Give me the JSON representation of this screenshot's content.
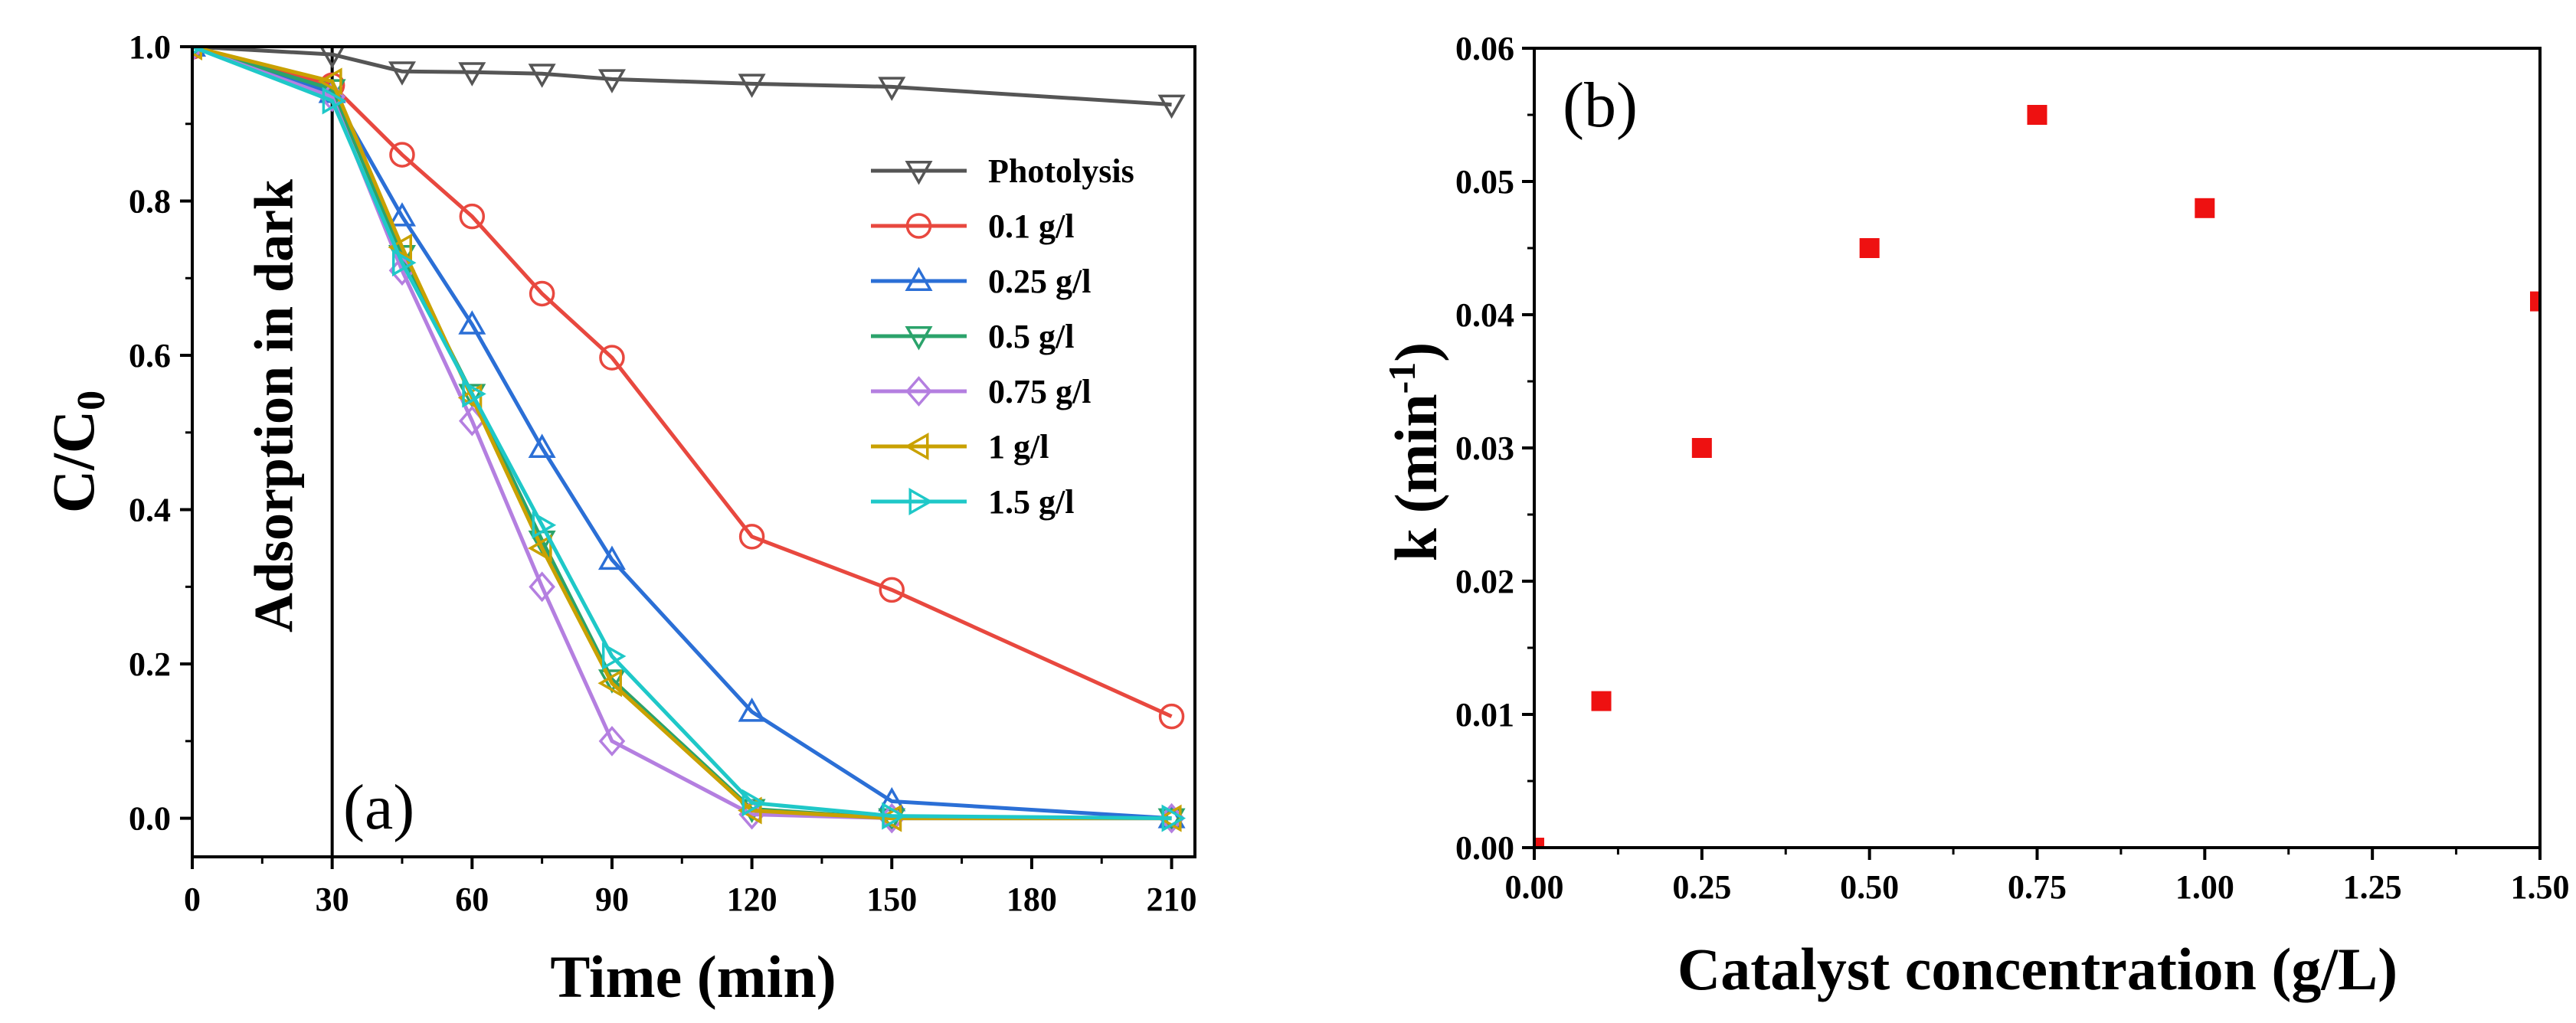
{
  "chart_data": [
    {
      "type": "line",
      "panel_label": "(a)",
      "xlabel": "Time (min)",
      "ylabel_main": "C/C",
      "ylabel_sub": "0",
      "xlim": [
        0,
        215
      ],
      "ylim": [
        -0.05,
        1.0
      ],
      "xticks": [
        0,
        30,
        60,
        90,
        120,
        150,
        180,
        210
      ],
      "yticks": [
        0.0,
        0.2,
        0.4,
        0.6,
        0.8,
        1.0
      ],
      "xtick_labels": [
        "0",
        "30",
        "60",
        "90",
        "120",
        "150",
        "180",
        "210"
      ],
      "ytick_labels": [
        "0.0",
        "0.2",
        "0.4",
        "0.6",
        "0.8",
        "1.0"
      ],
      "annotation": {
        "text": "Adsorption in dark",
        "x": 30
      },
      "legend_position": "top-right",
      "series": [
        {
          "name": "Photolysis",
          "color": "#555555",
          "marker": "triangle-down",
          "x": [
            0,
            30,
            45,
            60,
            75,
            90,
            120,
            150,
            210
          ],
          "y": [
            1.0,
            0.99,
            0.968,
            0.967,
            0.965,
            0.958,
            0.952,
            0.948,
            0.925
          ]
        },
        {
          "name": "0.1 g/l",
          "color": "#e8483f",
          "marker": "circle",
          "x": [
            0,
            30,
            45,
            60,
            75,
            90,
            120,
            150,
            210
          ],
          "y": [
            1.0,
            0.95,
            0.86,
            0.78,
            0.68,
            0.597,
            0.365,
            0.296,
            0.132
          ]
        },
        {
          "name": "0.25 g/l",
          "color": "#2b6fd6",
          "marker": "triangle-up",
          "x": [
            0,
            30,
            45,
            60,
            75,
            90,
            120,
            150,
            210
          ],
          "y": [
            1.0,
            0.94,
            0.78,
            0.64,
            0.48,
            0.335,
            0.138,
            0.022,
            0.0
          ]
        },
        {
          "name": "0.5 g/l",
          "color": "#2ba36b",
          "marker": "triangle-down",
          "x": [
            0,
            30,
            45,
            60,
            75,
            90,
            120,
            150,
            210
          ],
          "y": [
            1.0,
            0.945,
            0.73,
            0.55,
            0.36,
            0.18,
            0.012,
            0.0,
            0.0
          ]
        },
        {
          "name": "0.75 g/l",
          "color": "#b47fe0",
          "marker": "diamond",
          "x": [
            0,
            30,
            45,
            60,
            75,
            90,
            120,
            150,
            210
          ],
          "y": [
            1.0,
            0.935,
            0.71,
            0.515,
            0.3,
            0.1,
            0.005,
            0.0,
            0.0
          ]
        },
        {
          "name": "1 g/l",
          "color": "#c9a100",
          "marker": "triangle-left",
          "x": [
            0,
            30,
            45,
            60,
            75,
            90,
            120,
            150,
            210
          ],
          "y": [
            1.0,
            0.955,
            0.74,
            0.545,
            0.35,
            0.175,
            0.01,
            0.0,
            0.0
          ]
        },
        {
          "name": "1.5 g/l",
          "color": "#1fc8c8",
          "marker": "triangle-right",
          "x": [
            0,
            30,
            45,
            60,
            75,
            90,
            120,
            150,
            210
          ],
          "y": [
            1.0,
            0.93,
            0.72,
            0.55,
            0.38,
            0.21,
            0.02,
            0.003,
            0.0
          ]
        }
      ]
    },
    {
      "type": "scatter",
      "panel_label": "(b)",
      "xlabel": "Catalyst concentration (g/L)",
      "ylabel_main": "k (min",
      "ylabel_sup": "-1",
      "ylabel_end": ")",
      "xlim": [
        0,
        1.5
      ],
      "ylim": [
        0,
        0.06
      ],
      "xticks": [
        0,
        0.25,
        0.5,
        0.75,
        1.0,
        1.25,
        1.5
      ],
      "yticks": [
        0,
        0.01,
        0.02,
        0.03,
        0.04,
        0.05,
        0.06
      ],
      "xtick_labels": [
        "0.00",
        "0.25",
        "0.50",
        "0.75",
        "1.00",
        "1.25",
        "1.50"
      ],
      "ytick_labels": [
        "0.00",
        "0.01",
        "0.02",
        "0.03",
        "0.04",
        "0.05",
        "0.06"
      ],
      "marker_color": "#ee1111",
      "points": [
        {
          "x": 0.0,
          "y": 0.0
        },
        {
          "x": 0.1,
          "y": 0.011
        },
        {
          "x": 0.25,
          "y": 0.03
        },
        {
          "x": 0.5,
          "y": 0.045
        },
        {
          "x": 0.75,
          "y": 0.055
        },
        {
          "x": 1.0,
          "y": 0.048
        },
        {
          "x": 1.5,
          "y": 0.041
        }
      ]
    }
  ]
}
